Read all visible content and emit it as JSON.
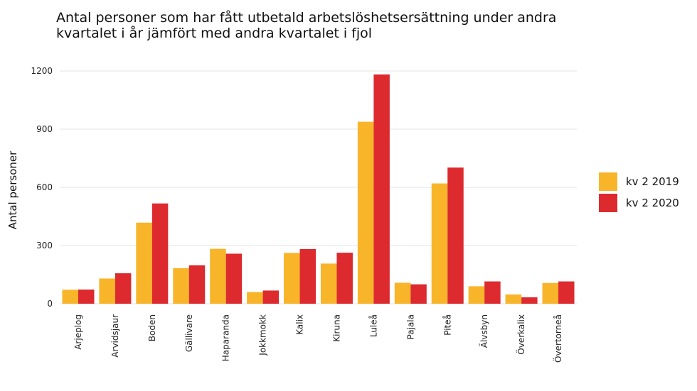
{
  "chart_data": {
    "type": "bar",
    "title_lines": [
      "Antal personer som har fått utbetald arbetslöshetsersättning under andra",
      "kvartalet i år jämfört med andra kvartalet i fjol"
    ],
    "xlabel": "",
    "ylabel": "Antal personer",
    "ylim": [
      0,
      1200
    ],
    "yticks": [
      0,
      300,
      600,
      900,
      1200
    ],
    "grid": true,
    "legend_position": "right",
    "categories": [
      "Arjeplog",
      "Arvidsjaur",
      "Boden",
      "Gällivare",
      "Haparanda",
      "Jokkmokk",
      "Kalix",
      "Kiruna",
      "Luleå",
      "Pajala",
      "Piteå",
      "Älvsbyn",
      "Överkalix",
      "Övertorneå"
    ],
    "series": [
      {
        "name": "kv 2 2019",
        "color": "#f8b52a",
        "values": [
          72,
          130,
          418,
          183,
          283,
          60,
          262,
          207,
          938,
          108,
          620,
          90,
          48,
          107
        ]
      },
      {
        "name": "kv 2 2020",
        "color": "#dc2a2e",
        "values": [
          73,
          157,
          517,
          198,
          258,
          68,
          282,
          263,
          1182,
          100,
          702,
          115,
          33,
          115
        ]
      }
    ]
  }
}
